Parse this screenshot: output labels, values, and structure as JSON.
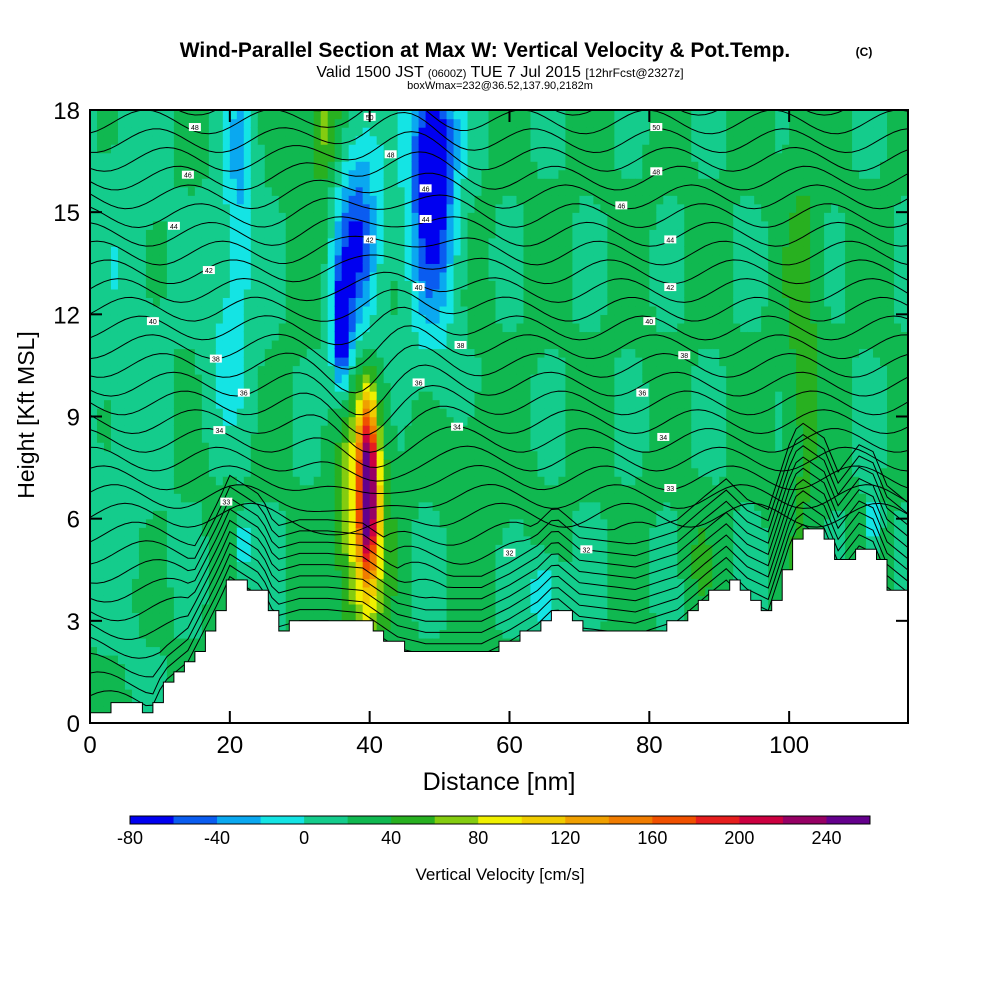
{
  "title": {
    "main": "Wind-Parallel Section at Max W: Vertical Velocity & Pot.Temp.",
    "copyright": "(C)",
    "valid_prefix": "Valid 1500 JST",
    "valid_utc": "(0600Z)",
    "valid_date": "TUE 7 Jul 2015",
    "forecast": "[12hrFcst@2327z]",
    "box_info": "boxWmax=232@36.52,137.90,2182m"
  },
  "colors": {
    "scale": [
      "#0000f0",
      "#0a5cf0",
      "#0aa8f0",
      "#14e4e4",
      "#14cc8c",
      "#10b850",
      "#28b020",
      "#84cc10",
      "#f0f000",
      "#f0cc00",
      "#f0a000",
      "#f07c00",
      "#f05000",
      "#e61e1e",
      "#cc0040",
      "#960064",
      "#64008c"
    ],
    "terrain": "#ffffff",
    "contour": "#000000"
  },
  "chart_data": {
    "type": "heatmap",
    "xlabel": "Distance [nm]",
    "ylabel": "Height [Kft MSL]",
    "xlim": [
      0,
      117
    ],
    "ylim": [
      0,
      18
    ],
    "x_ticks": [
      "0",
      "20",
      "40",
      "60",
      "80",
      "100"
    ],
    "y_ticks": [
      "0",
      "3",
      "6",
      "9",
      "12",
      "15",
      "18"
    ],
    "x_tick_values": [
      0,
      20,
      40,
      60,
      80,
      100
    ],
    "y_tick_values": [
      0,
      3,
      6,
      9,
      12,
      15,
      18
    ],
    "colorbar": {
      "label": "Vertical Velocity [cm/s]",
      "min": -80,
      "max": 260,
      "step": 20,
      "ticks": [
        "-80",
        "-40",
        "0",
        "40",
        "80",
        "120",
        "160",
        "200",
        "240"
      ],
      "tick_values": [
        -80,
        -40,
        0,
        40,
        80,
        120,
        160,
        200,
        240
      ]
    },
    "features": [
      {
        "kind": "updraft",
        "x": 39.8,
        "y": 7.0,
        "peak": 232
      },
      {
        "kind": "updraft",
        "x": 33.5,
        "y": 17.5,
        "peak": 75
      },
      {
        "kind": "downdraft",
        "x": 49,
        "y": 16.5,
        "peak": -80
      },
      {
        "kind": "downdraft",
        "x": 36,
        "y": 11.5,
        "peak": -75
      }
    ],
    "terrain": [
      {
        "x": 0,
        "height_kft": 0.3
      },
      {
        "x": 4.2,
        "height_kft": 0.6
      },
      {
        "x": 8.5,
        "height_kft": 0.3
      },
      {
        "x": 10.5,
        "height_kft": 1.2
      },
      {
        "x": 14,
        "height_kft": 1.8
      },
      {
        "x": 18.5,
        "height_kft": 3.6
      },
      {
        "x": 20,
        "height_kft": 4.3
      },
      {
        "x": 24.5,
        "height_kft": 3.7
      },
      {
        "x": 26.5,
        "height_kft": 2.8
      },
      {
        "x": 30,
        "height_kft": 3.0
      },
      {
        "x": 34,
        "height_kft": 3.0
      },
      {
        "x": 39,
        "height_kft": 2.9
      },
      {
        "x": 44,
        "height_kft": 2.2
      },
      {
        "x": 48,
        "height_kft": 2.0
      },
      {
        "x": 56,
        "height_kft": 2.0
      },
      {
        "x": 60,
        "height_kft": 2.4
      },
      {
        "x": 64,
        "height_kft": 2.9
      },
      {
        "x": 66.5,
        "height_kft": 3.4
      },
      {
        "x": 70,
        "height_kft": 2.8
      },
      {
        "x": 78,
        "height_kft": 2.6
      },
      {
        "x": 84,
        "height_kft": 3.0
      },
      {
        "x": 88,
        "height_kft": 3.7
      },
      {
        "x": 91,
        "height_kft": 4.2
      },
      {
        "x": 94,
        "height_kft": 3.6
      },
      {
        "x": 97,
        "height_kft": 3.3
      },
      {
        "x": 100,
        "height_kft": 5.2
      },
      {
        "x": 101.5,
        "height_kft": 5.9
      },
      {
        "x": 105,
        "height_kft": 5.4
      },
      {
        "x": 107,
        "height_kft": 4.4
      },
      {
        "x": 110,
        "height_kft": 5.2
      },
      {
        "x": 112,
        "height_kft": 5.0
      },
      {
        "x": 114,
        "height_kft": 4.0
      },
      {
        "x": 117,
        "height_kft": 3.5
      }
    ],
    "contour_labels": [
      {
        "x": 15,
        "y": 17.5,
        "text": "48"
      },
      {
        "x": 14,
        "y": 16.1,
        "text": "46"
      },
      {
        "x": 12,
        "y": 14.6,
        "text": "44"
      },
      {
        "x": 17,
        "y": 13.3,
        "text": "42"
      },
      {
        "x": 9,
        "y": 11.8,
        "text": "40"
      },
      {
        "x": 18,
        "y": 10.7,
        "text": "38"
      },
      {
        "x": 22,
        "y": 9.7,
        "text": "36"
      },
      {
        "x": 18.5,
        "y": 8.6,
        "text": "34"
      },
      {
        "x": 19.5,
        "y": 6.5,
        "text": "33"
      },
      {
        "x": 40,
        "y": 17.8,
        "text": "50"
      },
      {
        "x": 43,
        "y": 16.7,
        "text": "48"
      },
      {
        "x": 48,
        "y": 15.7,
        "text": "46"
      },
      {
        "x": 48,
        "y": 14.8,
        "text": "44"
      },
      {
        "x": 40,
        "y": 14.2,
        "text": "42"
      },
      {
        "x": 47,
        "y": 12.8,
        "text": "40"
      },
      {
        "x": 53,
        "y": 11.1,
        "text": "38"
      },
      {
        "x": 47,
        "y": 10.0,
        "text": "36"
      },
      {
        "x": 52.5,
        "y": 8.7,
        "text": "34"
      },
      {
        "x": 60,
        "y": 5.0,
        "text": "32"
      },
      {
        "x": 71,
        "y": 5.1,
        "text": "32"
      },
      {
        "x": 81,
        "y": 17.5,
        "text": "50"
      },
      {
        "x": 81,
        "y": 16.2,
        "text": "48"
      },
      {
        "x": 76,
        "y": 15.2,
        "text": "46"
      },
      {
        "x": 83,
        "y": 14.2,
        "text": "44"
      },
      {
        "x": 83,
        "y": 12.8,
        "text": "42"
      },
      {
        "x": 80,
        "y": 11.8,
        "text": "40"
      },
      {
        "x": 85,
        "y": 10.8,
        "text": "38"
      },
      {
        "x": 79,
        "y": 9.7,
        "text": "36"
      },
      {
        "x": 82,
        "y": 8.4,
        "text": "34"
      },
      {
        "x": 83,
        "y": 6.9,
        "text": "33"
      }
    ]
  }
}
